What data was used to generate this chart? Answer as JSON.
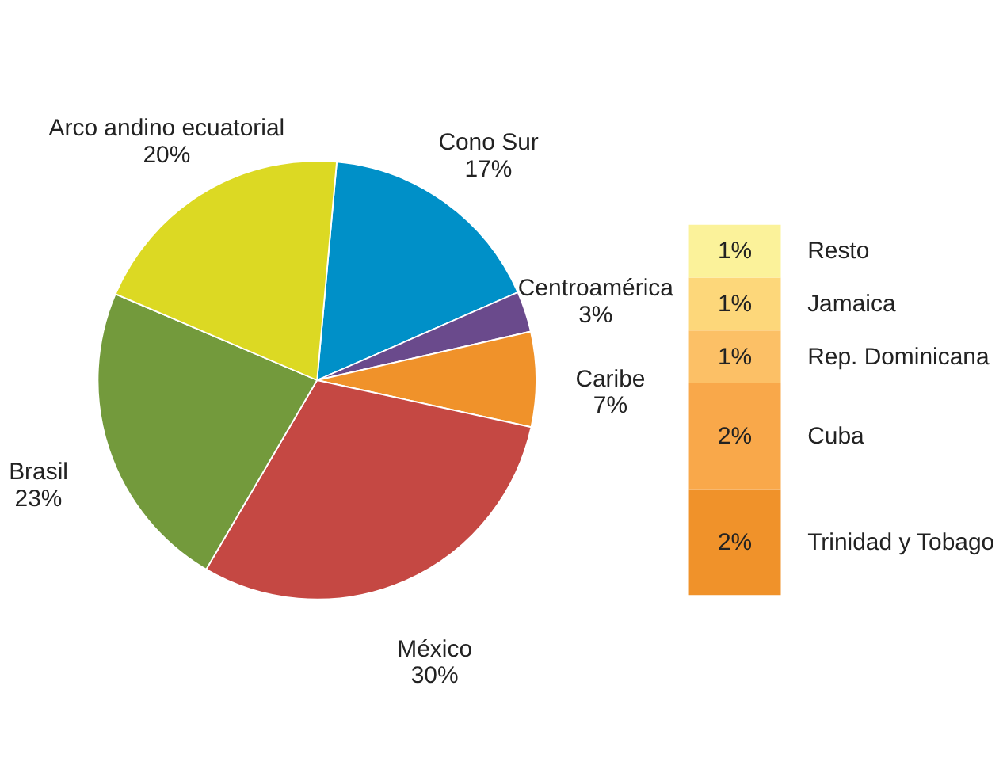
{
  "chart_data": [
    {
      "type": "pie",
      "categories": [
        "Cono Sur",
        "Centroamérica",
        "Caribe",
        "México",
        "Brasil",
        "Arco andino ecuatorial"
      ],
      "values": [
        17,
        3,
        7,
        30,
        23,
        20
      ],
      "colors": [
        "#0090c8",
        "#6a4a8c",
        "#f0922a",
        "#c54843",
        "#739a3c",
        "#dcd923"
      ],
      "value_labels": [
        "17%",
        "3%",
        "7%",
        "30%",
        "23%",
        "20%"
      ]
    },
    {
      "type": "bar",
      "stacked": true,
      "categories": [
        null
      ],
      "tick_labels": false,
      "series": [
        {
          "name": "Trinidad y Tobago",
          "color": "#f0922a",
          "values": [
            2
          ],
          "value_labels": [
            "2%"
          ]
        },
        {
          "name": "Cuba",
          "color": "#f9a84a",
          "values": [
            2
          ],
          "value_labels": [
            "2%"
          ]
        },
        {
          "name": "Rep. Dominicana",
          "color": "#fcc066",
          "values": [
            1
          ],
          "value_labels": [
            "1%"
          ]
        },
        {
          "name": "Jamaica",
          "color": "#fdd77a",
          "values": [
            1
          ],
          "value_labels": [
            "1%"
          ]
        },
        {
          "name": "Resto",
          "color": "#fbf29a",
          "values": [
            1
          ],
          "value_labels": [
            "1%"
          ]
        }
      ]
    }
  ]
}
